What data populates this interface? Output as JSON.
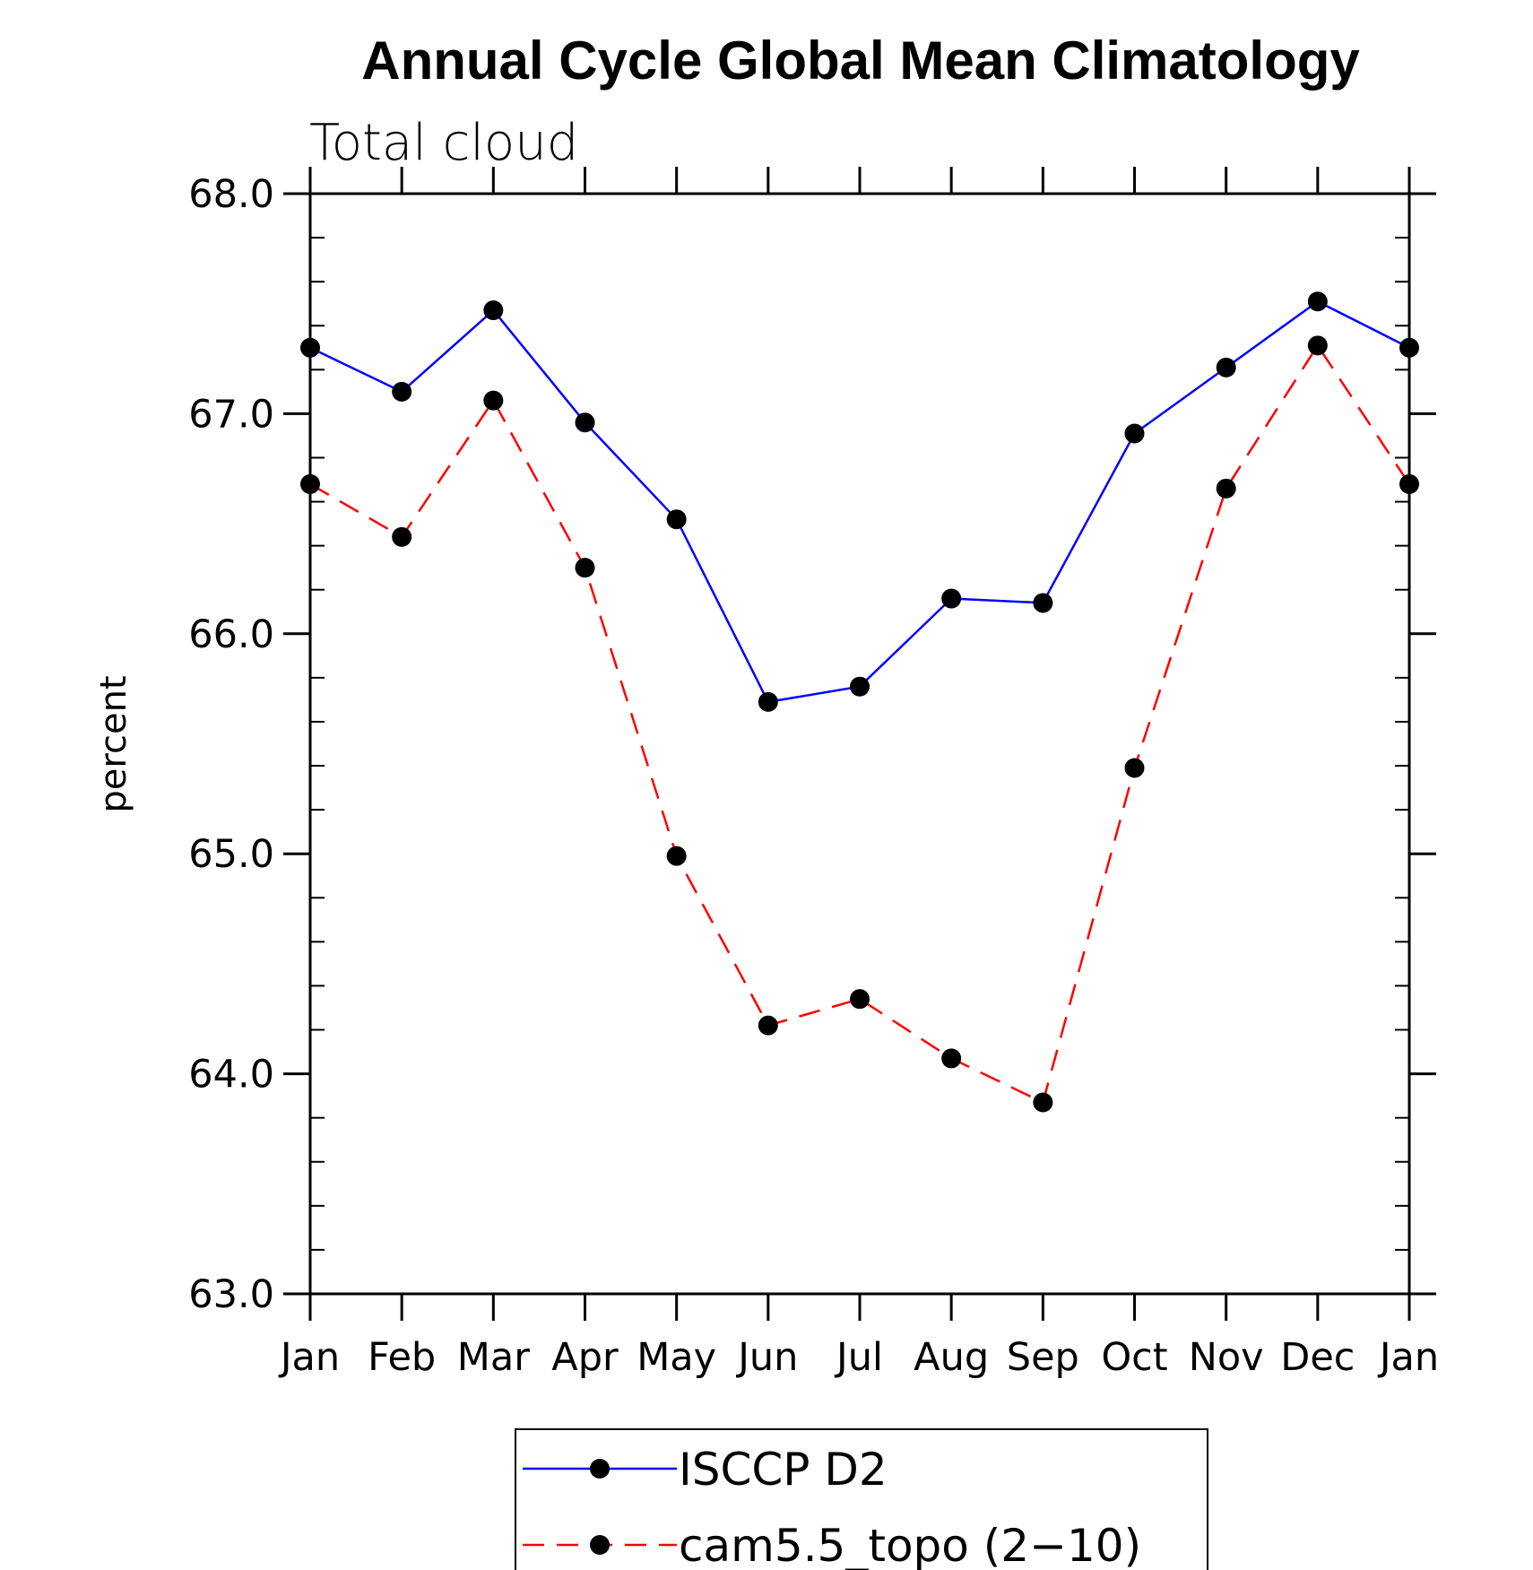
{
  "chart_data": {
    "type": "line",
    "title": "Annual Cycle Global Mean Climatology",
    "subtitle": "Total cloud",
    "xlabel": "",
    "ylabel": "percent",
    "categories": [
      "Jan",
      "Feb",
      "Mar",
      "Apr",
      "May",
      "Jun",
      "Jul",
      "Aug",
      "Sep",
      "Oct",
      "Nov",
      "Dec",
      "Jan"
    ],
    "ylim": [
      63.0,
      68.0
    ],
    "yticks": [
      "63.0",
      "64.0",
      "65.0",
      "66.0",
      "67.0",
      "68.0"
    ],
    "grid": false,
    "legend_position": "bottom",
    "series": [
      {
        "name": "ISCCP D2",
        "color": "#0000ff",
        "line_style": "solid",
        "marker": "filled-circle",
        "values": [
          67.3,
          67.1,
          67.47,
          66.96,
          66.52,
          65.69,
          65.76,
          66.16,
          66.14,
          66.91,
          67.21,
          67.51,
          67.3
        ]
      },
      {
        "name": "cam5.5_topo (2−10)",
        "color": "#ff0000",
        "line_style": "dashed",
        "marker": "filled-circle",
        "values": [
          66.68,
          66.44,
          67.06,
          66.3,
          64.99,
          64.22,
          64.34,
          64.07,
          63.87,
          65.39,
          66.66,
          67.31,
          66.68
        ]
      }
    ]
  }
}
